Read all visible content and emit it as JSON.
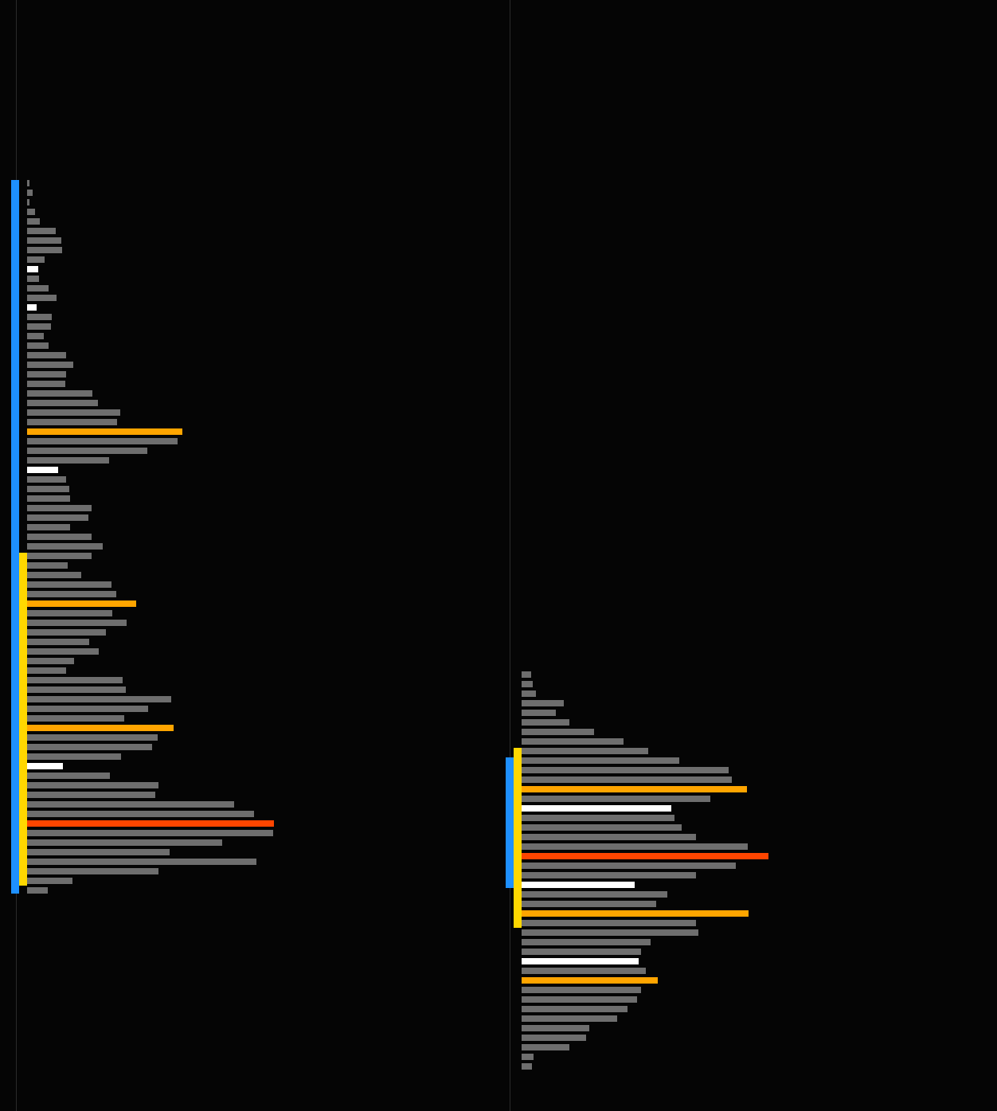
{
  "colors": {
    "background": "#050505",
    "separator": "#2a2a2a",
    "bar": "#6e6e6e",
    "highlight": "#ffffff",
    "node": "#ffa500",
    "poc": "#ff4500",
    "value_area": "#ffd700",
    "session_range": "#1e90ff"
  },
  "chart_data": [
    {
      "type": "bar",
      "orientation": "horizontal",
      "description_role": "volume-profile",
      "session_range": [
        0,
        74
      ],
      "value_area": [
        39,
        73
      ],
      "levels": [
        {
          "v": 3,
          "kind": "bar"
        },
        {
          "v": 7,
          "kind": "bar"
        },
        {
          "v": 3,
          "kind": "bar"
        },
        {
          "v": 10,
          "kind": "bar"
        },
        {
          "v": 16,
          "kind": "bar"
        },
        {
          "v": 36,
          "kind": "bar"
        },
        {
          "v": 43,
          "kind": "bar"
        },
        {
          "v": 44,
          "kind": "bar"
        },
        {
          "v": 22,
          "kind": "bar"
        },
        {
          "v": 14,
          "kind": "highlight"
        },
        {
          "v": 15,
          "kind": "bar"
        },
        {
          "v": 27,
          "kind": "bar"
        },
        {
          "v": 37,
          "kind": "bar"
        },
        {
          "v": 12,
          "kind": "highlight"
        },
        {
          "v": 31,
          "kind": "bar"
        },
        {
          "v": 30,
          "kind": "bar"
        },
        {
          "v": 21,
          "kind": "bar"
        },
        {
          "v": 27,
          "kind": "bar"
        },
        {
          "v": 49,
          "kind": "bar"
        },
        {
          "v": 58,
          "kind": "bar"
        },
        {
          "v": 49,
          "kind": "bar"
        },
        {
          "v": 48,
          "kind": "bar"
        },
        {
          "v": 82,
          "kind": "bar"
        },
        {
          "v": 89,
          "kind": "bar"
        },
        {
          "v": 117,
          "kind": "bar"
        },
        {
          "v": 113,
          "kind": "bar"
        },
        {
          "v": 195,
          "kind": "node"
        },
        {
          "v": 189,
          "kind": "bar"
        },
        {
          "v": 151,
          "kind": "bar"
        },
        {
          "v": 103,
          "kind": "bar"
        },
        {
          "v": 39,
          "kind": "highlight"
        },
        {
          "v": 49,
          "kind": "bar"
        },
        {
          "v": 53,
          "kind": "bar"
        },
        {
          "v": 54,
          "kind": "bar"
        },
        {
          "v": 81,
          "kind": "bar"
        },
        {
          "v": 77,
          "kind": "bar"
        },
        {
          "v": 54,
          "kind": "bar"
        },
        {
          "v": 81,
          "kind": "bar"
        },
        {
          "v": 95,
          "kind": "bar"
        },
        {
          "v": 81,
          "kind": "bar"
        },
        {
          "v": 51,
          "kind": "bar"
        },
        {
          "v": 68,
          "kind": "bar"
        },
        {
          "v": 106,
          "kind": "bar"
        },
        {
          "v": 112,
          "kind": "bar"
        },
        {
          "v": 137,
          "kind": "node"
        },
        {
          "v": 107,
          "kind": "bar"
        },
        {
          "v": 125,
          "kind": "bar"
        },
        {
          "v": 99,
          "kind": "bar"
        },
        {
          "v": 78,
          "kind": "bar"
        },
        {
          "v": 90,
          "kind": "bar"
        },
        {
          "v": 59,
          "kind": "bar"
        },
        {
          "v": 49,
          "kind": "bar"
        },
        {
          "v": 120,
          "kind": "bar"
        },
        {
          "v": 124,
          "kind": "bar"
        },
        {
          "v": 181,
          "kind": "bar"
        },
        {
          "v": 152,
          "kind": "bar"
        },
        {
          "v": 122,
          "kind": "bar"
        },
        {
          "v": 184,
          "kind": "node"
        },
        {
          "v": 164,
          "kind": "bar"
        },
        {
          "v": 157,
          "kind": "bar"
        },
        {
          "v": 118,
          "kind": "bar"
        },
        {
          "v": 45,
          "kind": "highlight"
        },
        {
          "v": 104,
          "kind": "bar"
        },
        {
          "v": 165,
          "kind": "bar"
        },
        {
          "v": 161,
          "kind": "bar"
        },
        {
          "v": 260,
          "kind": "bar"
        },
        {
          "v": 285,
          "kind": "bar"
        },
        {
          "v": 310,
          "kind": "poc"
        },
        {
          "v": 309,
          "kind": "bar"
        },
        {
          "v": 245,
          "kind": "bar"
        },
        {
          "v": 179,
          "kind": "bar"
        },
        {
          "v": 288,
          "kind": "bar"
        },
        {
          "v": 165,
          "kind": "bar"
        },
        {
          "v": 57,
          "kind": "bar"
        },
        {
          "v": 26,
          "kind": "bar"
        }
      ]
    },
    {
      "type": "bar",
      "orientation": "horizontal",
      "description_role": "volume-profile",
      "session_range": [
        9,
        22
      ],
      "value_area": [
        8,
        26
      ],
      "levels": [
        {
          "v": 12,
          "kind": "bar"
        },
        {
          "v": 14,
          "kind": "bar"
        },
        {
          "v": 18,
          "kind": "bar"
        },
        {
          "v": 53,
          "kind": "bar"
        },
        {
          "v": 43,
          "kind": "bar"
        },
        {
          "v": 60,
          "kind": "bar"
        },
        {
          "v": 91,
          "kind": "bar"
        },
        {
          "v": 128,
          "kind": "bar"
        },
        {
          "v": 159,
          "kind": "bar"
        },
        {
          "v": 198,
          "kind": "bar"
        },
        {
          "v": 260,
          "kind": "bar"
        },
        {
          "v": 264,
          "kind": "bar"
        },
        {
          "v": 283,
          "kind": "node"
        },
        {
          "v": 237,
          "kind": "bar"
        },
        {
          "v": 188,
          "kind": "highlight"
        },
        {
          "v": 192,
          "kind": "bar"
        },
        {
          "v": 201,
          "kind": "bar"
        },
        {
          "v": 219,
          "kind": "bar"
        },
        {
          "v": 284,
          "kind": "bar"
        },
        {
          "v": 310,
          "kind": "poc"
        },
        {
          "v": 269,
          "kind": "bar"
        },
        {
          "v": 219,
          "kind": "bar"
        },
        {
          "v": 142,
          "kind": "highlight"
        },
        {
          "v": 183,
          "kind": "bar"
        },
        {
          "v": 169,
          "kind": "bar"
        },
        {
          "v": 285,
          "kind": "node"
        },
        {
          "v": 219,
          "kind": "bar"
        },
        {
          "v": 222,
          "kind": "bar"
        },
        {
          "v": 162,
          "kind": "bar"
        },
        {
          "v": 150,
          "kind": "bar"
        },
        {
          "v": 147,
          "kind": "highlight"
        },
        {
          "v": 156,
          "kind": "bar"
        },
        {
          "v": 171,
          "kind": "node"
        },
        {
          "v": 150,
          "kind": "bar"
        },
        {
          "v": 145,
          "kind": "bar"
        },
        {
          "v": 133,
          "kind": "bar"
        },
        {
          "v": 120,
          "kind": "bar"
        },
        {
          "v": 85,
          "kind": "bar"
        },
        {
          "v": 81,
          "kind": "bar"
        },
        {
          "v": 60,
          "kind": "bar"
        },
        {
          "v": 15,
          "kind": "bar"
        },
        {
          "v": 13,
          "kind": "bar"
        }
      ]
    }
  ]
}
